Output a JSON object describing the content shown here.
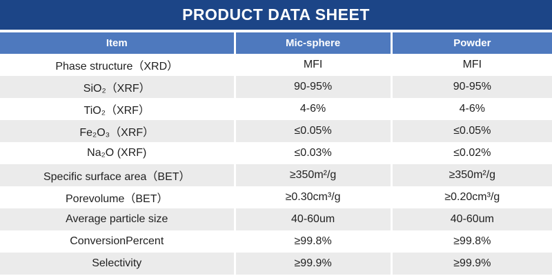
{
  "title": "PRODUCT DATA SHEET",
  "colors": {
    "title_bg": "#1c4587",
    "header_bg": "#4e79be",
    "header_text": "#ffffff",
    "row_alt_bg": "#ebebeb",
    "row_bg": "#ffffff",
    "body_text": "#1f1f1f",
    "separator": "#ffffff"
  },
  "table": {
    "headers": [
      "Item",
      "Mic-sphere",
      "Powder"
    ],
    "rows": [
      {
        "item": "Phase structure（XRD）",
        "mic_sphere": "MFI",
        "powder": "MFI"
      },
      {
        "item": "SiO₂（XRF）",
        "mic_sphere": "90-95%",
        "powder": "90-95%"
      },
      {
        "item": "TiO₂（XRF）",
        "mic_sphere": "4-6%",
        "powder": "4-6%"
      },
      {
        "item": "Fe₂O₃（XRF）",
        "mic_sphere": "≤0.05%",
        "powder": "≤0.05%"
      },
      {
        "item": "Na₂O (XRF)",
        "mic_sphere": "≤0.03%",
        "powder": "≤0.02%"
      },
      {
        "item": "Specific surface area（BET）",
        "mic_sphere": "≥350m²/g",
        "powder": "≥350m²/g"
      },
      {
        "item": "Porevolume（BET）",
        "mic_sphere": "≥0.30cm³/g",
        "powder": "≥0.20cm³/g"
      },
      {
        "item": "Average particle size",
        "mic_sphere": "40-60um",
        "powder": "40-60um"
      },
      {
        "item": "ConversionPercent",
        "mic_sphere": "≥99.8%",
        "powder": "≥99.8%"
      },
      {
        "item": "Selectivity",
        "mic_sphere": "≥99.9%",
        "powder": "≥99.9%"
      }
    ]
  }
}
